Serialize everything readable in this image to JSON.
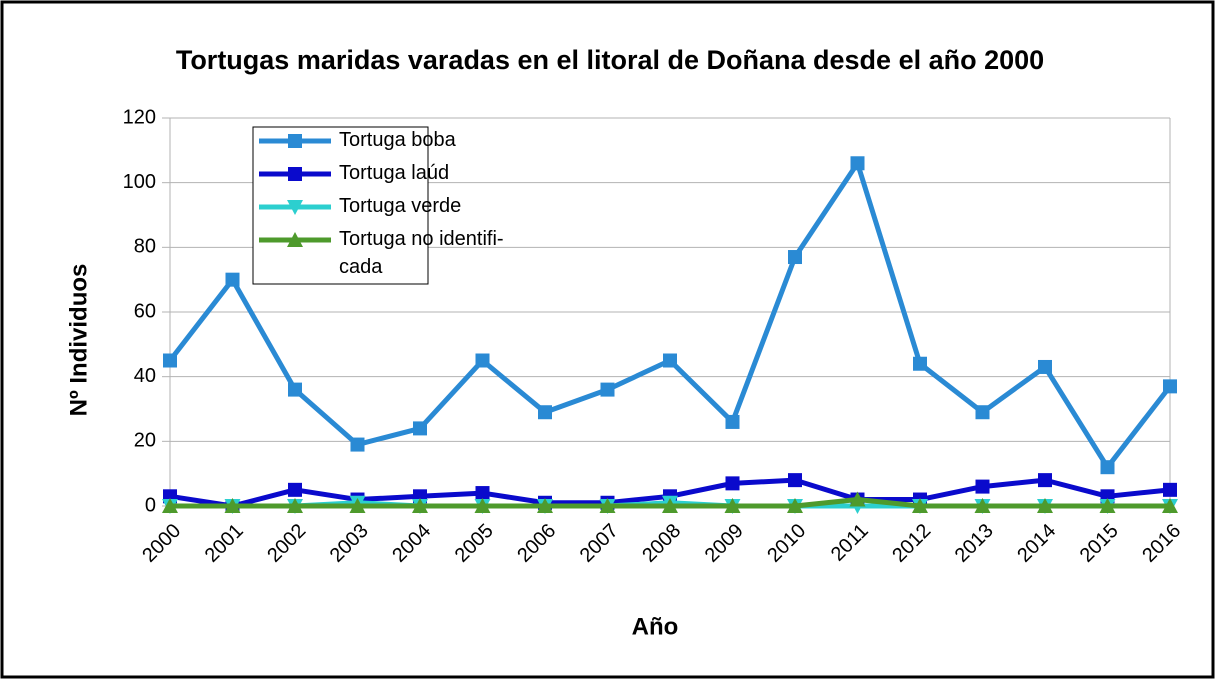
{
  "chart_data": {
    "type": "line",
    "title": "Tortugas maridas varadas en el litoral de Doñana desde el año 2000",
    "xlabel": "Año",
    "ylabel": "Nº Individuos",
    "categories": [
      "2000",
      "2001",
      "2002",
      "2003",
      "2004",
      "2005",
      "2006",
      "2007",
      "2008",
      "2009",
      "2010",
      "2011",
      "2012",
      "2013",
      "2014",
      "2015",
      "2016"
    ],
    "series": [
      {
        "name": "Tortuga boba",
        "color": "#2a8ad4",
        "marker": "square",
        "values": [
          45,
          70,
          36,
          19,
          24,
          45,
          29,
          36,
          45,
          26,
          77,
          106,
          44,
          29,
          43,
          12,
          37
        ]
      },
      {
        "name": "Tortuga laúd",
        "color": "#0a0acc",
        "marker": "square",
        "values": [
          3,
          0,
          5,
          2,
          3,
          4,
          1,
          1,
          3,
          7,
          8,
          2,
          2,
          6,
          8,
          3,
          5
        ]
      },
      {
        "name": "Tortuga verde",
        "color": "#2ccfcf",
        "marker": "triangle-down",
        "values": [
          0,
          0,
          0,
          1,
          0,
          0,
          0,
          0,
          1,
          0,
          0,
          0,
          0,
          0,
          0,
          0,
          0
        ]
      },
      {
        "name": "Tortuga no identifi-\ncada",
        "color": "#4e9a2c",
        "marker": "triangle-up",
        "values": [
          0,
          0,
          0,
          0,
          0,
          0,
          0,
          0,
          0,
          0,
          0,
          2,
          0,
          0,
          0,
          0,
          0
        ]
      }
    ],
    "ylim": [
      0,
      120
    ],
    "yticks": [
      0,
      20,
      40,
      60,
      80,
      100,
      120
    ],
    "grid": true,
    "legend": "upper left"
  }
}
